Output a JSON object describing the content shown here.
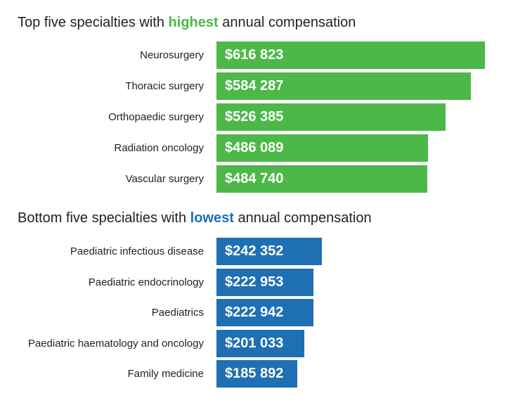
{
  "chart_data": [
    {
      "type": "bar",
      "orientation": "horizontal",
      "title_parts": [
        "Top five specialties with ",
        "highest",
        " annual compensation"
      ],
      "color": "#4cb848",
      "categories": [
        "Neurosurgery",
        "Thoracic surgery",
        "Orthopaedic surgery",
        "Radiation oncology",
        "Vascular surgery"
      ],
      "values": [
        616823,
        584287,
        526385,
        486089,
        484740
      ],
      "labels": [
        "$616 823",
        "$584 287",
        "$526 385",
        "$486 089",
        "$484 740"
      ]
    },
    {
      "type": "bar",
      "orientation": "horizontal",
      "title_parts": [
        "Bottom five specialties with ",
        "lowest",
        " annual compensation"
      ],
      "color": "#1f6fb5",
      "categories": [
        "Paediatric infectious disease",
        "Paediatric endocrinology",
        "Paediatrics",
        "Paediatric haematology and oncology",
        "Family medicine"
      ],
      "values": [
        242352,
        222953,
        222942,
        201033,
        185892
      ],
      "labels": [
        "$242 352",
        "$222 953",
        "$222 942",
        "$201 033",
        "$185 892"
      ]
    }
  ]
}
